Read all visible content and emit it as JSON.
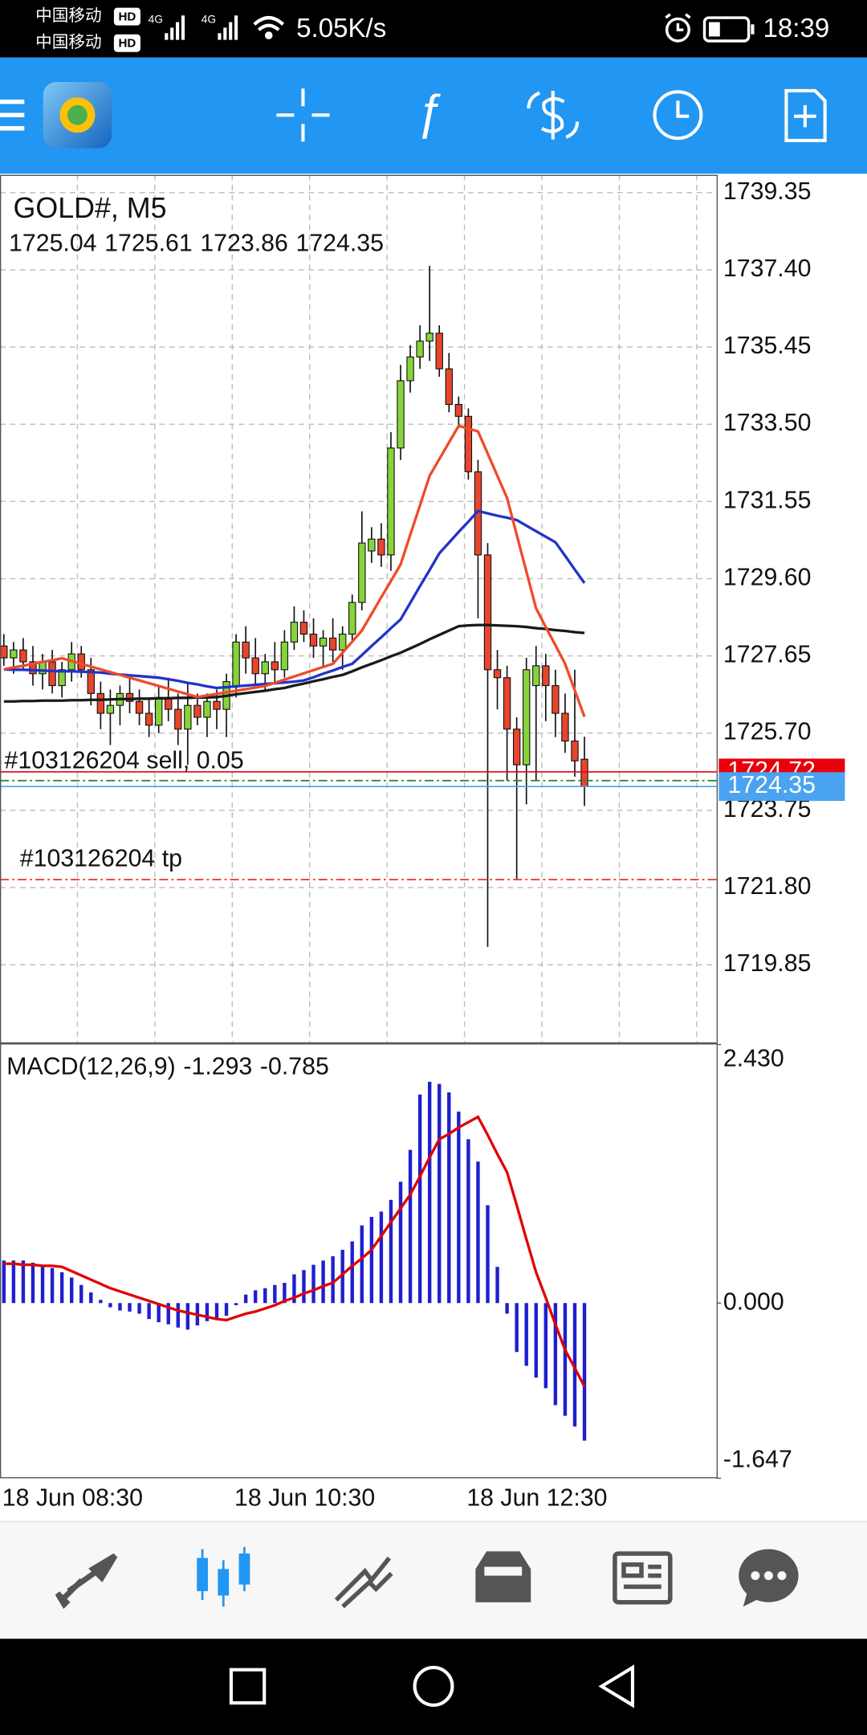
{
  "status_bar": {
    "carriers": [
      "中国移动",
      "中国移动"
    ],
    "hd": "HD",
    "network": "4G",
    "speed": "5.05K/s",
    "time": "18:39"
  },
  "chart_data": [
    {
      "type": "candlestick",
      "title": "GOLD#, M5",
      "categories": [
        "18 Jun 08:30",
        null,
        null,
        null,
        null,
        null,
        null,
        null,
        null,
        null,
        null,
        null,
        null,
        null,
        null,
        null,
        null,
        null,
        null,
        null,
        null,
        null,
        null,
        null,
        "18 Jun 10:30",
        null,
        null,
        null,
        null,
        null,
        null,
        null,
        null,
        null,
        null,
        null,
        null,
        null,
        null,
        null,
        null,
        null,
        null,
        null,
        null,
        null,
        null,
        null,
        "18 Jun 12:30",
        null,
        null,
        null,
        null,
        null,
        null,
        null,
        null,
        null,
        null,
        null,
        null
      ],
      "open": [
        1727.9,
        1727.6,
        1727.8,
        1727.5,
        1727.2,
        1727.5,
        1726.9,
        1727.3,
        1727.7,
        1727.3,
        1726.7,
        1726.2,
        1726.4,
        1726.7,
        1726.5,
        1726.2,
        1725.9,
        1726.6,
        1726.3,
        1725.8,
        1726.4,
        1726.1,
        1726.5,
        1726.3,
        1726.9,
        1728.0,
        1727.6,
        1727.2,
        1727.5,
        1727.3,
        1728.0,
        1728.5,
        1728.2,
        1727.9,
        1728.1,
        1727.8,
        1728.2,
        1729.0,
        1730.3,
        1730.6,
        1730.2,
        1732.9,
        1734.6,
        1735.2,
        1735.6,
        1735.8,
        1734.9,
        1734.0,
        1733.7,
        1732.3,
        1730.2,
        1727.3,
        1727.1,
        1725.8,
        1724.9,
        1726.9,
        1727.4,
        1726.9,
        1726.2,
        1725.5,
        1725.04
      ],
      "high": [
        1728.2,
        1728.0,
        1728.1,
        1727.9,
        1727.7,
        1727.8,
        1727.5,
        1728.0,
        1727.9,
        1727.6,
        1727.0,
        1726.8,
        1726.9,
        1727.1,
        1726.8,
        1726.6,
        1726.9,
        1727.1,
        1726.7,
        1727.0,
        1726.7,
        1726.7,
        1726.8,
        1727.2,
        1728.2,
        1728.4,
        1728.1,
        1727.7,
        1728.0,
        1728.3,
        1728.9,
        1728.8,
        1728.6,
        1728.3,
        1728.6,
        1728.4,
        1729.2,
        1731.3,
        1730.9,
        1731.0,
        1733.3,
        1735.0,
        1735.5,
        1736.0,
        1737.5,
        1736.0,
        1735.3,
        1734.2,
        1733.9,
        1732.6,
        1730.5,
        1727.8,
        1727.4,
        1726.1,
        1727.6,
        1727.9,
        1727.7,
        1727.3,
        1726.7,
        1727.3,
        1725.61
      ],
      "low": [
        1727.4,
        1727.2,
        1727.3,
        1726.9,
        1726.8,
        1726.7,
        1726.6,
        1727.0,
        1727.1,
        1726.4,
        1725.8,
        1725.4,
        1725.9,
        1726.2,
        1725.9,
        1725.6,
        1725.7,
        1726.0,
        1725.4,
        1724.9,
        1725.9,
        1725.6,
        1725.8,
        1725.6,
        1726.6,
        1727.2,
        1726.9,
        1726.8,
        1727.0,
        1727.1,
        1727.8,
        1728.0,
        1727.6,
        1727.4,
        1727.5,
        1727.3,
        1728.0,
        1728.8,
        1730.0,
        1729.9,
        1729.8,
        1732.6,
        1734.3,
        1734.9,
        1735.1,
        1734.7,
        1733.8,
        1733.4,
        1732.1,
        1728.6,
        1720.3,
        1726.3,
        1724.5,
        1722.0,
        1723.9,
        1724.5,
        1726.0,
        1725.6,
        1725.2,
        1724.6,
        1723.86
      ],
      "close": [
        1727.6,
        1727.8,
        1727.5,
        1727.2,
        1727.5,
        1726.9,
        1727.3,
        1727.7,
        1727.3,
        1726.7,
        1726.2,
        1726.4,
        1726.7,
        1726.5,
        1726.2,
        1725.9,
        1726.6,
        1726.3,
        1725.8,
        1726.4,
        1726.1,
        1726.5,
        1726.3,
        1727.0,
        1728.0,
        1727.6,
        1727.2,
        1727.5,
        1727.3,
        1728.0,
        1728.5,
        1728.2,
        1727.9,
        1728.1,
        1727.8,
        1728.2,
        1729.0,
        1730.5,
        1730.6,
        1730.2,
        1732.9,
        1734.6,
        1735.2,
        1735.6,
        1735.8,
        1734.9,
        1734.0,
        1733.7,
        1732.3,
        1730.2,
        1727.3,
        1727.1,
        1725.8,
        1724.9,
        1727.3,
        1727.4,
        1726.9,
        1726.2,
        1725.5,
        1725.0,
        1724.35
      ],
      "up_color": "#86d43a",
      "down_color": "#e8452c",
      "lines": [
        {
          "color": "#1a1a1a",
          "values": [
            1726.5,
            1726.5,
            1726.51,
            1726.51,
            1726.52,
            1726.52,
            1726.52,
            1726.53,
            1726.53,
            1726.54,
            1726.54,
            1726.55,
            1726.56,
            1726.56,
            1726.57,
            1726.57,
            1726.58,
            1726.58,
            1726.59,
            1726.59,
            1726.6,
            1726.6,
            1726.61,
            1726.64,
            1726.68,
            1726.71,
            1726.74,
            1726.77,
            1726.81,
            1726.84,
            1726.9,
            1726.95,
            1727.01,
            1727.06,
            1727.12,
            1727.17,
            1727.26,
            1727.36,
            1727.45,
            1727.54,
            1727.64,
            1727.73,
            1727.84,
            1727.95,
            1728.07,
            1728.18,
            1728.29,
            1728.4,
            1728.42,
            1728.43,
            1728.43,
            1728.42,
            1728.41,
            1728.4,
            1728.38,
            1728.35,
            1728.33,
            1728.3,
            1728.28,
            1728.25,
            1728.23
          ]
        },
        {
          "color": "#2233c8",
          "values": [
            1727.31,
            1727.3,
            1727.3,
            1727.29,
            1727.28,
            1727.27,
            1727.26,
            1727.26,
            1727.25,
            1727.24,
            1727.23,
            1727.2,
            1727.18,
            1727.16,
            1727.14,
            1727.12,
            1727.1,
            1727.06,
            1727.02,
            1726.97,
            1726.93,
            1726.88,
            1726.84,
            1726.86,
            1726.88,
            1726.9,
            1726.92,
            1726.94,
            1726.96,
            1726.98,
            1727.0,
            1727.03,
            1727.11,
            1727.2,
            1727.28,
            1727.37,
            1727.45,
            1727.67,
            1727.9,
            1728.12,
            1728.35,
            1728.57,
            1728.99,
            1729.41,
            1729.82,
            1730.24,
            1730.51,
            1730.78,
            1731.04,
            1731.31,
            1731.25,
            1731.19,
            1731.14,
            1731.08,
            1730.94,
            1730.8,
            1730.66,
            1730.52,
            1730.18,
            1729.83,
            1729.49
          ]
        },
        {
          "color": "#ef4b2a",
          "values": [
            1727.31,
            1727.36,
            1727.4,
            1727.45,
            1727.5,
            1727.54,
            1727.59,
            1727.52,
            1727.45,
            1727.38,
            1727.31,
            1727.24,
            1727.17,
            1727.1,
            1727.03,
            1726.96,
            1726.89,
            1726.82,
            1726.75,
            1726.68,
            1726.61,
            1726.65,
            1726.69,
            1726.73,
            1726.77,
            1726.81,
            1726.85,
            1726.89,
            1726.97,
            1727.05,
            1727.13,
            1727.21,
            1727.29,
            1727.37,
            1727.45,
            1727.73,
            1728.01,
            1728.29,
            1728.71,
            1729.13,
            1729.54,
            1729.96,
            1730.71,
            1731.45,
            1732.2,
            1732.62,
            1733.04,
            1733.46,
            1733.39,
            1733.32,
            1732.76,
            1732.2,
            1731.64,
            1730.71,
            1729.78,
            1728.85,
            1728.38,
            1727.92,
            1727.45,
            1726.78,
            1726.11
          ]
        }
      ],
      "ask": 1724.72,
      "ask_color": "#e8000b",
      "bid_color": "#4aa3f0",
      "orders": [
        {
          "label": "#103126204 sell, 0.05",
          "value": 1724.5,
          "color": "#2e8b3a"
        },
        {
          "label": "#103126204 tp",
          "value": 1722.0,
          "color": "#e8452c"
        }
      ],
      "ylim": [
        1717.89,
        1739.8
      ],
      "yticks": [
        1739.35,
        {
          "value": 1737.4,
          "label": "1737.40"
        },
        1735.45,
        {
          "value": 1733.5,
          "label": "1733.50"
        },
        1731.55,
        {
          "value": 1729.6,
          "label": "1729.60"
        },
        1727.65,
        {
          "value": 1725.7,
          "label": "1725.70"
        },
        1723.75,
        {
          "value": 1721.8,
          "label": "1721.80"
        },
        1719.85
      ],
      "grid": true
    },
    {
      "type": "macd",
      "title": "MACD(12,26,9)",
      "histogram": [
        0.4,
        0.4,
        0.4,
        0.38,
        0.36,
        0.33,
        0.29,
        0.24,
        0.17,
        0.1,
        0.03,
        -0.04,
        -0.07,
        -0.08,
        -0.1,
        -0.15,
        -0.18,
        -0.2,
        -0.23,
        -0.25,
        -0.21,
        -0.17,
        -0.15,
        -0.12,
        -0.02,
        0.08,
        0.12,
        0.14,
        0.17,
        0.19,
        0.27,
        0.31,
        0.36,
        0.4,
        0.44,
        0.5,
        0.58,
        0.73,
        0.81,
        0.86,
        0.97,
        1.14,
        1.44,
        1.96,
        2.08,
        2.06,
        1.98,
        1.8,
        1.54,
        1.33,
        0.92,
        0.34,
        -0.1,
        -0.46,
        -0.59,
        -0.7,
        -0.8,
        -0.96,
        -1.06,
        -1.16,
        -1.293
      ],
      "signal": [
        0.37,
        0.37,
        0.36,
        0.36,
        0.35,
        0.35,
        0.34,
        0.3,
        0.26,
        0.22,
        0.18,
        0.14,
        0.11,
        0.08,
        0.05,
        0.02,
        -0.01,
        -0.04,
        -0.07,
        -0.09,
        -0.11,
        -0.13,
        -0.15,
        -0.16,
        -0.13,
        -0.1,
        -0.08,
        -0.05,
        -0.02,
        0.02,
        0.05,
        0.09,
        0.12,
        0.16,
        0.19,
        0.27,
        0.35,
        0.42,
        0.5,
        0.63,
        0.76,
        0.89,
        1.02,
        1.19,
        1.37,
        1.54,
        1.59,
        1.65,
        1.7,
        1.75,
        1.58,
        1.4,
        1.23,
        0.92,
        0.6,
        0.29,
        0.05,
        -0.2,
        -0.44,
        -0.61,
        -0.785
      ],
      "histogram_color": "#1f1fcf",
      "signal_color": "#e00000",
      "ylim": [
        -1.647,
        2.43
      ],
      "yticks": [
        {
          "value": 2.43,
          "label": "2.430"
        },
        {
          "value": 0,
          "label": "0.000"
        },
        -1.647
      ]
    }
  ]
}
